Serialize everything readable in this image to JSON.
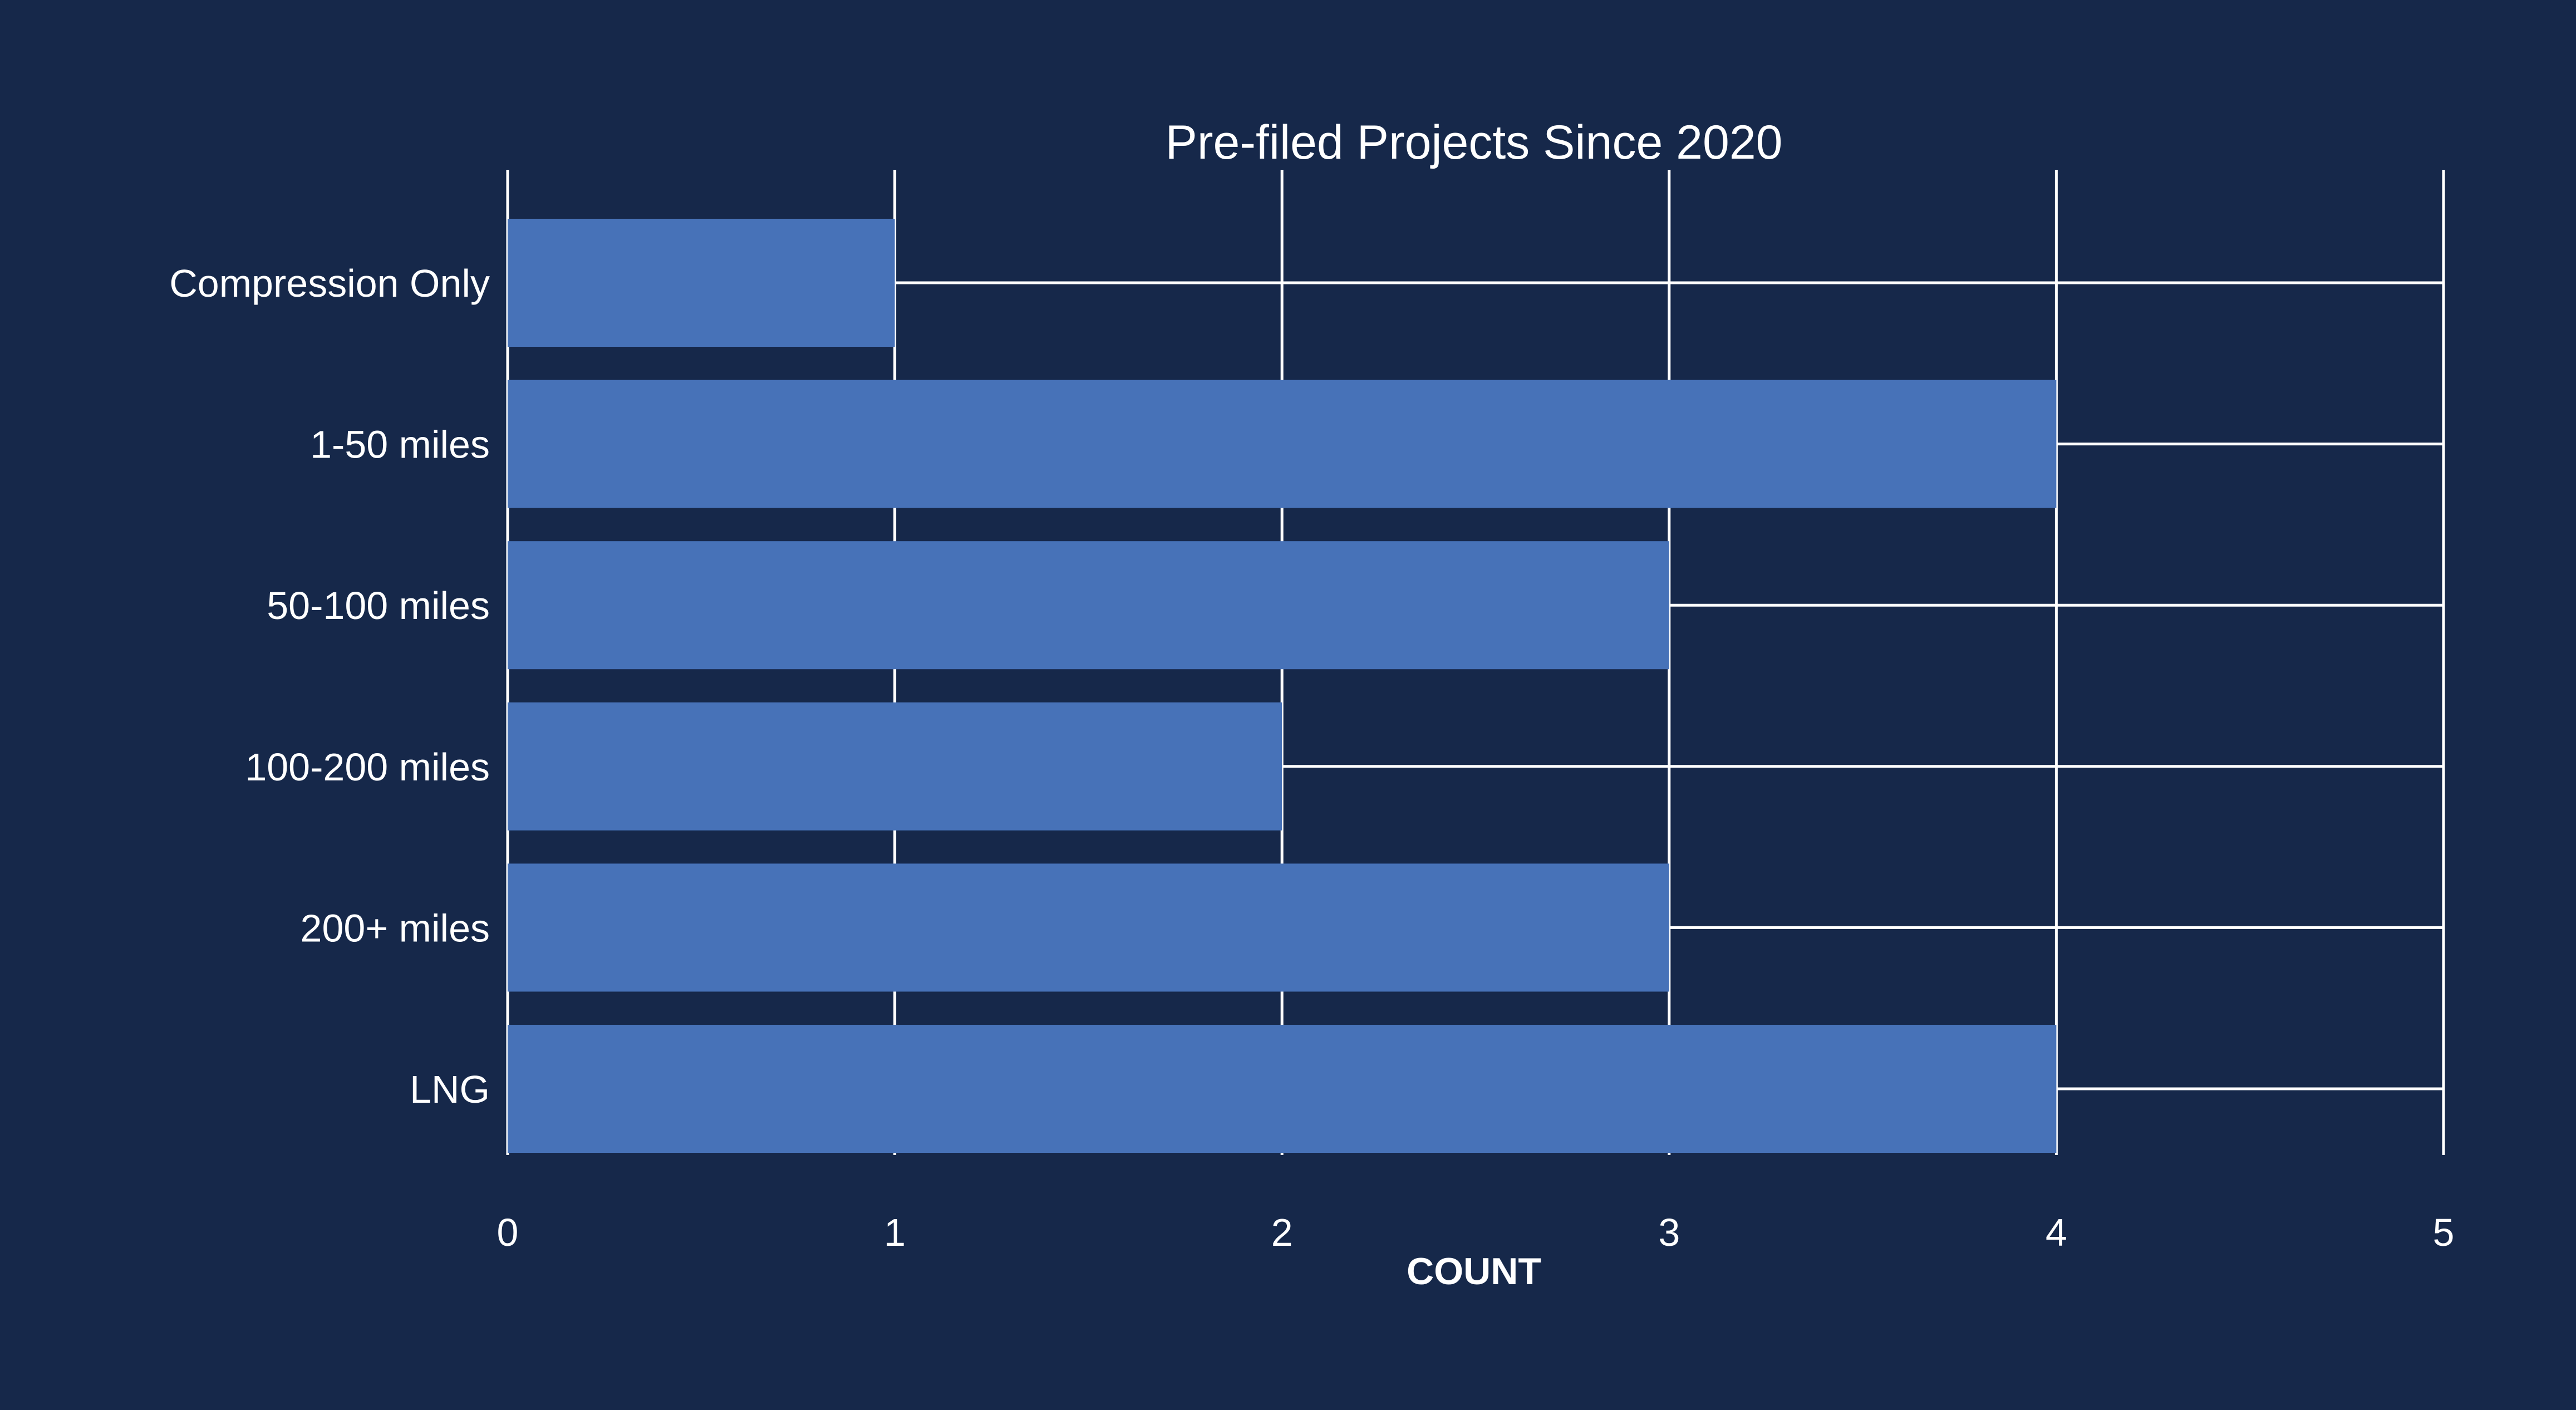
{
  "chart_data": {
    "type": "bar",
    "orientation": "horizontal",
    "title": "Pre-filed Projects Since 2020",
    "xlabel": "COUNT",
    "ylabel": "",
    "categories": [
      "Compression Only",
      "1-50 miles",
      "50-100 miles",
      "100-200 miles",
      "200+ miles",
      "LNG"
    ],
    "values": [
      1,
      4,
      3,
      2,
      3,
      4
    ],
    "xlim": [
      0,
      5
    ],
    "xticks": [
      "0",
      "1",
      "2",
      "3",
      "4",
      "5"
    ],
    "grid": true,
    "legend": "none"
  },
  "colors": {
    "background": "#16284a",
    "bar": "#4772b8",
    "grid": "#ffffff",
    "text": "#ffffff"
  }
}
